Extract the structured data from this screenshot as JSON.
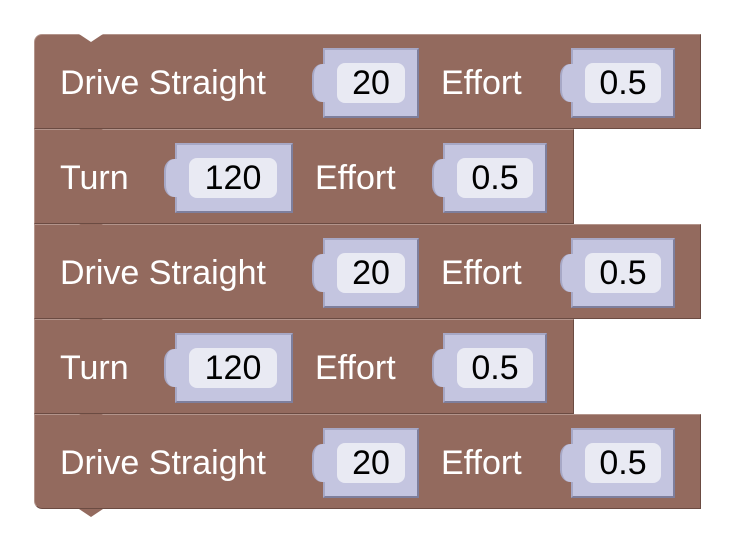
{
  "blocks": [
    {
      "label": "Drive Straight",
      "value1": "20",
      "label2": "Effort",
      "value2": "0.5"
    },
    {
      "label": "Turn",
      "value1": "120",
      "label2": "Effort",
      "value2": "0.5"
    },
    {
      "label": "Drive Straight",
      "value1": "20",
      "label2": "Effort",
      "value2": "0.5"
    },
    {
      "label": "Turn",
      "value1": "120",
      "label2": "Effort",
      "value2": "0.5"
    },
    {
      "label": "Drive Straight",
      "value1": "20",
      "label2": "Effort",
      "value2": "0.5"
    }
  ],
  "colors": {
    "block": "#936a5e",
    "socket": "#c4c5e0",
    "field": "#e9eaf3"
  }
}
